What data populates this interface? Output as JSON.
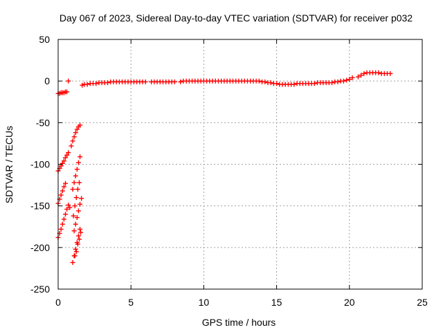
{
  "chart_data": {
    "type": "scatter",
    "title": "Day 067 of 2023, Sidereal Day-to-day VTEC variation (SDTVAR) for receiver p032",
    "xlabel": "GPS time / hours",
    "ylabel": "SDTVAR / TECUs",
    "xlim": [
      0,
      25
    ],
    "ylim": [
      -250,
      50
    ],
    "xticks": [
      0,
      5,
      10,
      15,
      20,
      25
    ],
    "yticks": [
      -250,
      -200,
      -150,
      -100,
      -50,
      0,
      50
    ],
    "xtick_labels": [
      "0",
      "5",
      "10",
      "15",
      "20",
      "25"
    ],
    "ytick_labels": [
      "-250",
      "-200",
      "-150",
      "-100",
      "-50",
      "0",
      "50"
    ],
    "grid": true,
    "legend": "none",
    "marker": "+",
    "colors": {
      "series": "#ff0000",
      "axis": "#000000",
      "grid": "#a0a0a0",
      "background": "#ffffff"
    },
    "series": [
      {
        "name": "SDTVAR",
        "points": [
          [
            0.0,
            -15
          ],
          [
            0.1,
            -15
          ],
          [
            0.2,
            -14
          ],
          [
            0.3,
            -14
          ],
          [
            0.4,
            -14
          ],
          [
            0.5,
            -13
          ],
          [
            0.6,
            -13
          ],
          [
            0.7,
            0
          ],
          [
            1.65,
            -5
          ],
          [
            1.8,
            -4
          ],
          [
            2.0,
            -4
          ],
          [
            2.2,
            -3
          ],
          [
            2.4,
            -3
          ],
          [
            2.6,
            -3
          ],
          [
            2.8,
            -2
          ],
          [
            3.0,
            -2
          ],
          [
            3.2,
            -2
          ],
          [
            3.4,
            -2
          ],
          [
            3.6,
            -1
          ],
          [
            3.8,
            -1
          ],
          [
            4.0,
            -1
          ],
          [
            4.2,
            -1
          ],
          [
            4.4,
            -1
          ],
          [
            4.6,
            -1
          ],
          [
            4.8,
            -1
          ],
          [
            5.0,
            -1
          ],
          [
            5.2,
            -1
          ],
          [
            5.4,
            -1
          ],
          [
            5.6,
            -1
          ],
          [
            5.8,
            -1
          ],
          [
            6.0,
            -1
          ],
          [
            6.4,
            -1
          ],
          [
            6.6,
            -1
          ],
          [
            6.8,
            -1
          ],
          [
            7.0,
            -1
          ],
          [
            7.2,
            -1
          ],
          [
            7.4,
            -1
          ],
          [
            7.6,
            -1
          ],
          [
            7.8,
            -1
          ],
          [
            8.0,
            -1
          ],
          [
            8.4,
            -1
          ],
          [
            8.6,
            0
          ],
          [
            8.8,
            0
          ],
          [
            9.0,
            0
          ],
          [
            9.2,
            0
          ],
          [
            9.4,
            0
          ],
          [
            9.6,
            0
          ],
          [
            9.8,
            0
          ],
          [
            10.0,
            0
          ],
          [
            10.2,
            0
          ],
          [
            10.4,
            0
          ],
          [
            10.6,
            0
          ],
          [
            10.8,
            0
          ],
          [
            11.0,
            0
          ],
          [
            11.2,
            0
          ],
          [
            11.4,
            0
          ],
          [
            11.6,
            0
          ],
          [
            11.8,
            0
          ],
          [
            12.0,
            0
          ],
          [
            12.2,
            0
          ],
          [
            12.4,
            0
          ],
          [
            12.6,
            0
          ],
          [
            12.8,
            0
          ],
          [
            13.0,
            0
          ],
          [
            13.2,
            0
          ],
          [
            13.4,
            0
          ],
          [
            13.6,
            0
          ],
          [
            13.8,
            0
          ],
          [
            14.0,
            -1
          ],
          [
            14.2,
            -1
          ],
          [
            14.4,
            -2
          ],
          [
            14.6,
            -2
          ],
          [
            14.8,
            -3
          ],
          [
            15.0,
            -3
          ],
          [
            15.2,
            -4
          ],
          [
            15.4,
            -4
          ],
          [
            15.6,
            -4
          ],
          [
            15.8,
            -4
          ],
          [
            16.0,
            -4
          ],
          [
            16.2,
            -4
          ],
          [
            16.4,
            -3
          ],
          [
            16.6,
            -3
          ],
          [
            16.8,
            -3
          ],
          [
            17.0,
            -3
          ],
          [
            17.2,
            -3
          ],
          [
            17.4,
            -3
          ],
          [
            17.6,
            -3
          ],
          [
            17.8,
            -2
          ],
          [
            18.0,
            -2
          ],
          [
            18.2,
            -2
          ],
          [
            18.4,
            -2
          ],
          [
            18.6,
            -2
          ],
          [
            18.8,
            -2
          ],
          [
            19.0,
            -1
          ],
          [
            19.2,
            -1
          ],
          [
            19.4,
            0
          ],
          [
            19.6,
            0
          ],
          [
            19.8,
            1
          ],
          [
            20.0,
            2
          ],
          [
            20.2,
            4
          ],
          [
            20.6,
            5
          ],
          [
            20.8,
            7
          ],
          [
            21.0,
            9
          ],
          [
            21.2,
            10
          ],
          [
            21.4,
            10
          ],
          [
            21.6,
            10
          ],
          [
            21.8,
            10
          ],
          [
            22.0,
            10
          ],
          [
            22.2,
            9
          ],
          [
            22.4,
            9
          ],
          [
            22.6,
            9
          ],
          [
            22.8,
            9
          ],
          [
            0.0,
            -108
          ],
          [
            0.1,
            -105
          ],
          [
            0.2,
            -102
          ],
          [
            0.3,
            -99
          ],
          [
            0.4,
            -96
          ],
          [
            0.5,
            -92
          ],
          [
            0.6,
            -89
          ],
          [
            0.7,
            -86
          ],
          [
            0.0,
            -147
          ],
          [
            0.1,
            -142
          ],
          [
            0.2,
            -137
          ],
          [
            0.3,
            -132
          ],
          [
            0.4,
            -127
          ],
          [
            0.5,
            -123
          ],
          [
            0.0,
            -188
          ],
          [
            0.1,
            -183
          ],
          [
            0.2,
            -178
          ],
          [
            0.3,
            -172
          ],
          [
            0.4,
            -166
          ],
          [
            0.5,
            -160
          ],
          [
            0.6,
            -154
          ],
          [
            0.7,
            -149
          ],
          [
            0.8,
            -152
          ],
          [
            1.0,
            -130
          ],
          [
            1.1,
            -122
          ],
          [
            1.2,
            -114
          ],
          [
            1.3,
            -106
          ],
          [
            1.4,
            -98
          ],
          [
            1.5,
            -91
          ],
          [
            1.1,
            -180
          ],
          [
            1.2,
            -172
          ],
          [
            1.3,
            -164
          ],
          [
            1.4,
            -156
          ],
          [
            1.5,
            -148
          ],
          [
            1.6,
            -141
          ],
          [
            1.0,
            -218
          ],
          [
            1.1,
            -210
          ],
          [
            1.2,
            -202
          ],
          [
            1.3,
            -194
          ],
          [
            1.4,
            -186
          ],
          [
            1.5,
            -178
          ],
          [
            0.9,
            -78
          ],
          [
            1.0,
            -72
          ],
          [
            1.1,
            -67
          ],
          [
            1.2,
            -62
          ],
          [
            1.3,
            -58
          ],
          [
            1.4,
            -55
          ],
          [
            1.5,
            -53
          ],
          [
            1.05,
            -162
          ],
          [
            1.15,
            -150
          ],
          [
            1.25,
            -140
          ],
          [
            1.35,
            -130
          ],
          [
            1.45,
            -122
          ],
          [
            1.15,
            -210
          ],
          [
            1.25,
            -205
          ],
          [
            1.35,
            -196
          ],
          [
            1.45,
            -190
          ],
          [
            1.55,
            -182
          ]
        ]
      }
    ]
  }
}
